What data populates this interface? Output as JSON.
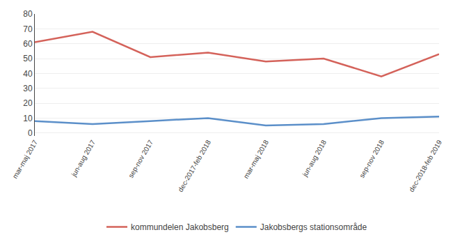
{
  "chart_data": {
    "type": "line",
    "categories": [
      "mar-maj 2017",
      "jun-aug 2017",
      "sep-nov 2017",
      "dec-2017-feb 2018",
      "mar-maj 2018",
      "jun-aug 2018",
      "sep-nov 2018",
      "dec-2018-feb 2019"
    ],
    "series": [
      {
        "name": "kommundelen Jakobsberg",
        "color": "#d4625a",
        "values": [
          61,
          68,
          51,
          54,
          48,
          50,
          38,
          53
        ]
      },
      {
        "name": "Jakobsbergs stationsområde",
        "color": "#5b8fc9",
        "values": [
          8,
          6,
          8,
          10,
          5,
          6,
          10,
          11
        ]
      }
    ],
    "ylim": [
      -2,
      80
    ],
    "yticks": [
      0,
      10,
      20,
      30,
      40,
      50,
      60,
      70,
      80
    ],
    "grid": true,
    "legend": "bottom"
  }
}
